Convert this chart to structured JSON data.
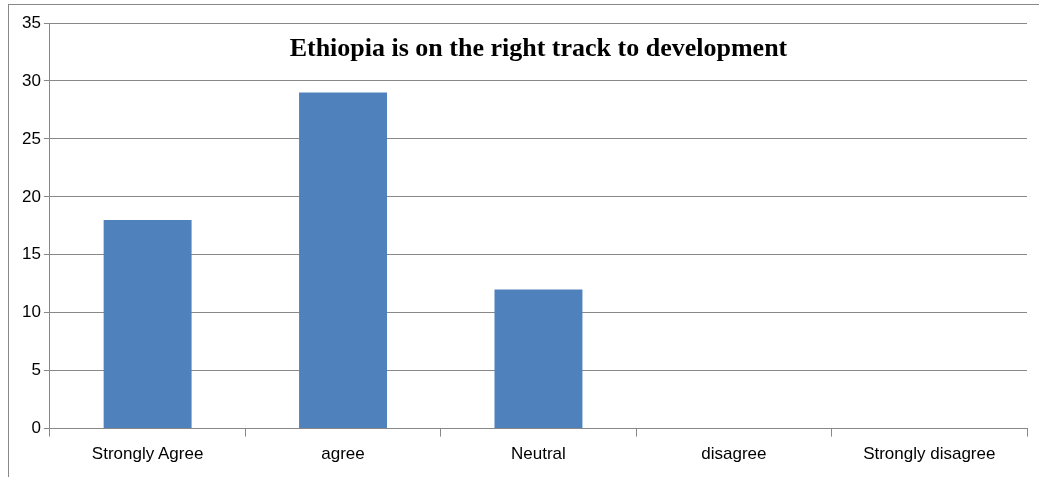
{
  "chart_data": {
    "type": "bar",
    "title": "Ethiopia is on the right track to development",
    "categories": [
      "Strongly Agree",
      "agree",
      "Neutral",
      "disagree",
      "Strongly disagree"
    ],
    "values": [
      18,
      29,
      12,
      0,
      0
    ],
    "color": "#4f81bd",
    "ylim": [
      0,
      35
    ],
    "yticks": [
      0,
      5,
      10,
      15,
      20,
      25,
      30,
      35
    ],
    "grid": "y",
    "legend": false
  }
}
